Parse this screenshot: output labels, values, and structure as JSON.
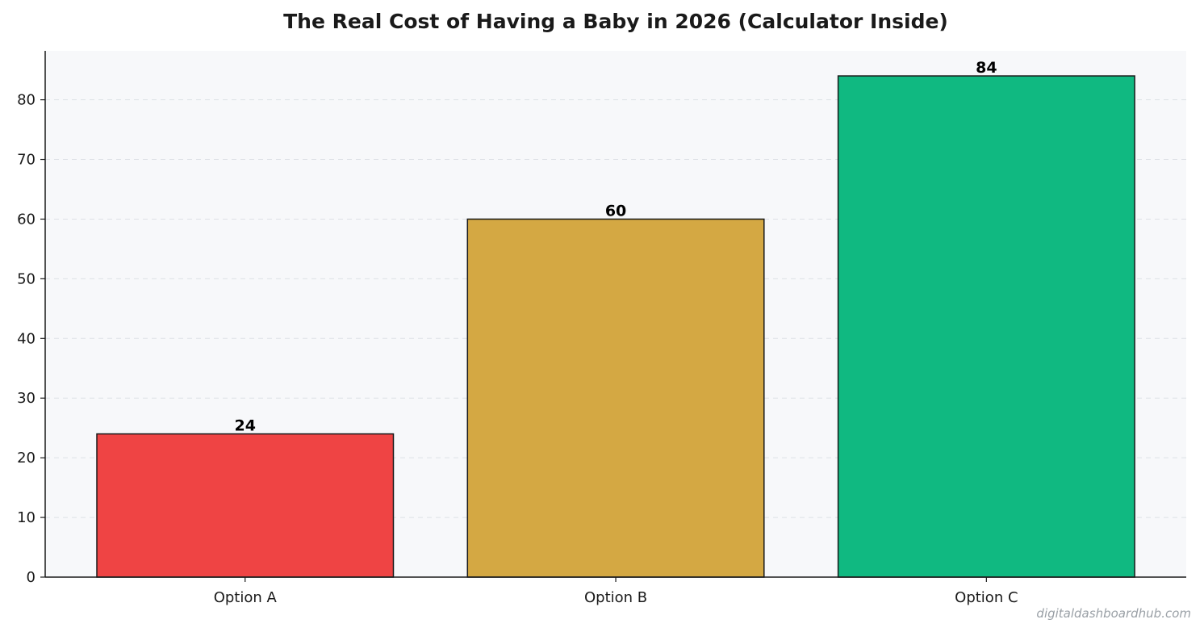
{
  "chart_data": {
    "type": "bar",
    "title": "The Real Cost of Having a Baby in 2026 (Calculator Inside)",
    "xlabel": "",
    "ylabel": "",
    "categories": [
      "Option A",
      "Option B",
      "Option C"
    ],
    "values": [
      24,
      60,
      84
    ],
    "data_labels": [
      "24",
      "60",
      "84"
    ],
    "colors": [
      "#ef4444",
      "#d4a843",
      "#10b981"
    ],
    "ylim": [
      0,
      88.2
    ],
    "yticks": [
      0,
      10,
      20,
      30,
      40,
      50,
      60,
      70,
      80
    ],
    "grid": true,
    "legend": "none"
  },
  "watermark": "digitaldashboardhub.com"
}
